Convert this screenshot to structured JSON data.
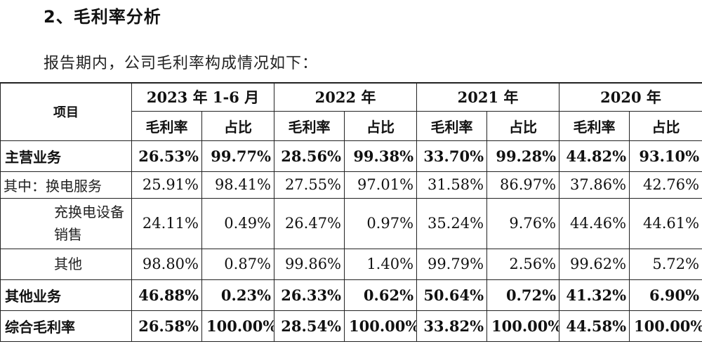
{
  "heading": "2、毛利率分析",
  "intro": "报告期内，公司毛利率构成情况如下：",
  "table": {
    "item_header": "项目",
    "periods": [
      "2023 年 1-6 月",
      "2022 年",
      "2021 年",
      "2020 年"
    ],
    "sub_headers": {
      "margin": "毛利率",
      "share": "占比"
    },
    "rows": [
      {
        "label": "主营业务",
        "values": [
          "26.53%",
          "99.77%",
          "28.56%",
          "99.38%",
          "33.70%",
          "99.28%",
          "44.82%",
          "93.10%"
        ]
      },
      {
        "label": "其中：换电服务",
        "values": [
          "25.91%",
          "98.41%",
          "27.55%",
          "97.01%",
          "31.58%",
          "86.97%",
          "37.86%",
          "42.76%"
        ]
      },
      {
        "label": "充换电设备销售",
        "values": [
          "24.11%",
          "0.49%",
          "26.47%",
          "0.97%",
          "35.24%",
          "9.76%",
          "44.46%",
          "44.61%"
        ]
      },
      {
        "label": "其他",
        "values": [
          "98.80%",
          "0.87%",
          "99.86%",
          "1.40%",
          "99.79%",
          "2.56%",
          "99.62%",
          "5.72%"
        ]
      },
      {
        "label": "其他业务",
        "values": [
          "46.88%",
          "0.23%",
          "26.33%",
          "0.62%",
          "50.64%",
          "0.72%",
          "41.32%",
          "6.90%"
        ]
      },
      {
        "label": "综合毛利率",
        "values": [
          "26.58%",
          "100.00%",
          "28.54%",
          "100.00%",
          "33.82%",
          "100.00%",
          "44.58%",
          "100.00%"
        ]
      }
    ]
  }
}
